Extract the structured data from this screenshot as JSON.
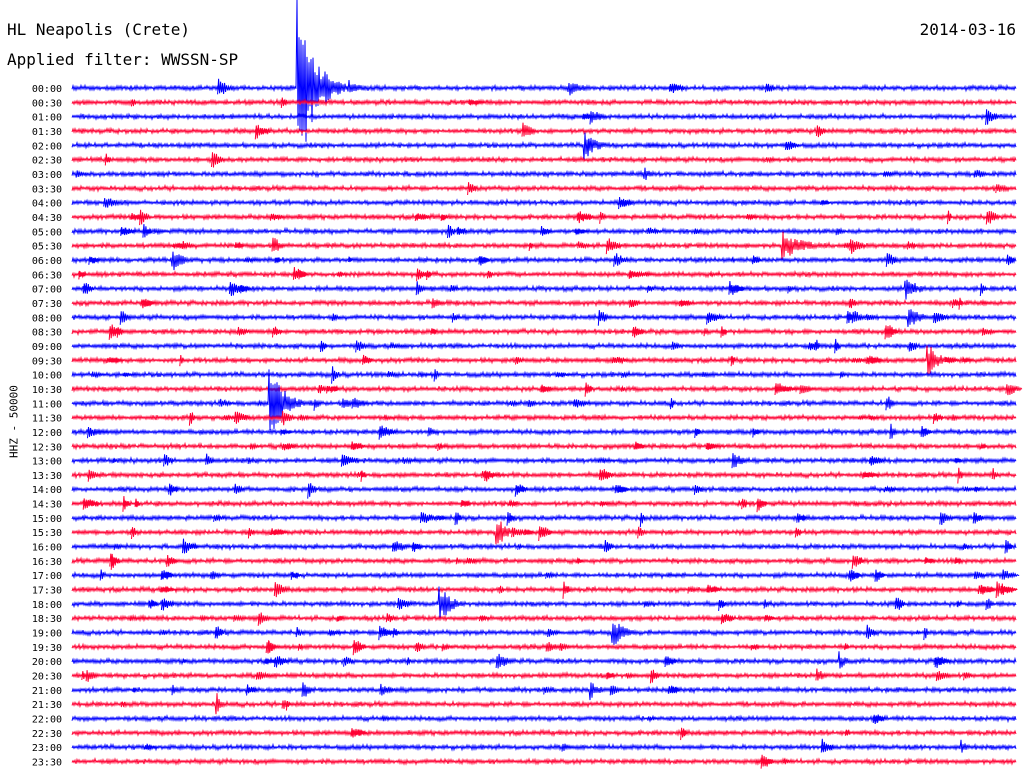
{
  "header": {
    "station": "HL Neapolis (Crete)",
    "date": "2014-03-16",
    "filter": "Applied filter: WWSSN-SP"
  },
  "chart_data": {
    "type": "line",
    "title": "HL Neapolis (Crete)",
    "subtitle": "Applied filter: WWSSN-SP",
    "date": "2014-03-16",
    "ylabel": "HHZ - 50000",
    "xlabel": "",
    "colors": [
      "#0000ff",
      "#ff0033"
    ],
    "rows": [
      "00:00",
      "00:30",
      "01:00",
      "01:30",
      "02:00",
      "02:30",
      "03:00",
      "03:30",
      "04:00",
      "04:30",
      "05:00",
      "05:30",
      "06:00",
      "06:30",
      "07:00",
      "07:30",
      "08:00",
      "08:30",
      "09:00",
      "09:30",
      "10:00",
      "10:30",
      "11:00",
      "11:30",
      "12:00",
      "12:30",
      "13:00",
      "13:30",
      "14:00",
      "14:30",
      "15:00",
      "15:30",
      "16:00",
      "16:30",
      "17:00",
      "17:30",
      "18:00",
      "18:30",
      "19:00",
      "19:30",
      "20:00",
      "20:30",
      "21:00",
      "21:30",
      "22:00",
      "22:30",
      "23:00",
      "23:30"
    ],
    "row_minutes": 30,
    "events": [
      {
        "row": "00:00",
        "minute": 7.2,
        "amplitude": 90,
        "duration_min": 1.5
      },
      {
        "row": "00:00",
        "minute": 8.8,
        "amplitude": 8,
        "duration_min": 1.2
      },
      {
        "row": "00:00",
        "minute": 15.8,
        "amplitude": 8,
        "duration_min": 1.4
      },
      {
        "row": "02:00",
        "minute": 16.3,
        "amplitude": 14,
        "duration_min": 1.2
      },
      {
        "row": "03:00",
        "minute": 18.2,
        "amplitude": 8,
        "duration_min": 0.6
      },
      {
        "row": "05:30",
        "minute": 22.6,
        "amplitude": 14,
        "duration_min": 2.0
      },
      {
        "row": "06:00",
        "minute": 3.2,
        "amplitude": 12,
        "duration_min": 1.0
      },
      {
        "row": "07:00",
        "minute": 26.5,
        "amplitude": 12,
        "duration_min": 1.2
      },
      {
        "row": "08:00",
        "minute": 26.6,
        "amplitude": 14,
        "duration_min": 1.0
      },
      {
        "row": "09:30",
        "minute": 27.2,
        "amplitude": 18,
        "duration_min": 1.0
      },
      {
        "row": "11:00",
        "minute": 6.3,
        "amplitude": 45,
        "duration_min": 1.2
      },
      {
        "row": "15:30",
        "minute": 13.5,
        "amplitude": 18,
        "duration_min": 0.8
      },
      {
        "row": "18:00",
        "minute": 11.7,
        "amplitude": 20,
        "duration_min": 1.0
      },
      {
        "row": "19:00",
        "minute": 17.2,
        "amplitude": 16,
        "duration_min": 1.0
      },
      {
        "row": "20:00",
        "minute": 24.4,
        "amplitude": 10,
        "duration_min": 0.6
      },
      {
        "row": "21:00",
        "minute": 16.5,
        "amplitude": 10,
        "duration_min": 0.8
      },
      {
        "row": "21:30",
        "minute": 4.6,
        "amplitude": 14,
        "duration_min": 0.4
      },
      {
        "row": "23:00",
        "minute": 28.3,
        "amplitude": 6,
        "duration_min": 0.5
      }
    ]
  }
}
